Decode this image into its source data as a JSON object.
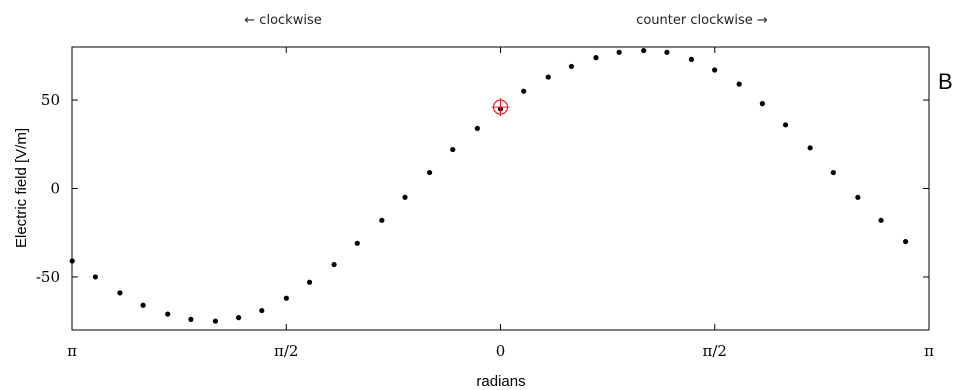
{
  "chart_data": {
    "type": "scatter",
    "panel_label": "B",
    "xlabel": "radians",
    "ylabel": "Electric field [V/m]",
    "direction_labels": {
      "left": "← clockwise",
      "right": "counter clockwise →"
    },
    "x_tick_labels": [
      "π",
      "π/2",
      "0",
      "π/2",
      "π"
    ],
    "x_tick_positions": [
      -3.14159,
      -1.5708,
      0,
      1.5708,
      3.14159
    ],
    "xlim": [
      -3.14159,
      3.14159
    ],
    "ylim": [
      -80,
      80
    ],
    "y_ticks": [
      -50,
      0,
      50
    ],
    "y_tick_labels": [
      "-50",
      "0",
      "50"
    ],
    "grid": false,
    "highlighted_point": {
      "x": 0,
      "y": 46,
      "color": "#e02020"
    },
    "series": [
      {
        "marker_color": "#000000",
        "points": [
          {
            "x": -3.14,
            "y": -41
          },
          {
            "x": -2.97,
            "y": -50
          },
          {
            "x": -2.79,
            "y": -59
          },
          {
            "x": -2.62,
            "y": -66
          },
          {
            "x": -2.44,
            "y": -71
          },
          {
            "x": -2.27,
            "y": -74
          },
          {
            "x": -2.09,
            "y": -75
          },
          {
            "x": -1.92,
            "y": -73
          },
          {
            "x": -1.75,
            "y": -69
          },
          {
            "x": -1.57,
            "y": -62
          },
          {
            "x": -1.4,
            "y": -53
          },
          {
            "x": -1.22,
            "y": -43
          },
          {
            "x": -1.05,
            "y": -31
          },
          {
            "x": -0.87,
            "y": -18
          },
          {
            "x": -0.7,
            "y": -5
          },
          {
            "x": -0.52,
            "y": 9
          },
          {
            "x": -0.35,
            "y": 22
          },
          {
            "x": -0.17,
            "y": 34
          },
          {
            "x": 0.0,
            "y": 45
          },
          {
            "x": 0.17,
            "y": 55
          },
          {
            "x": 0.35,
            "y": 63
          },
          {
            "x": 0.52,
            "y": 69
          },
          {
            "x": 0.7,
            "y": 74
          },
          {
            "x": 0.87,
            "y": 77
          },
          {
            "x": 1.05,
            "y": 78
          },
          {
            "x": 1.22,
            "y": 77
          },
          {
            "x": 1.4,
            "y": 73
          },
          {
            "x": 1.57,
            "y": 67
          },
          {
            "x": 1.75,
            "y": 59
          },
          {
            "x": 1.92,
            "y": 48
          },
          {
            "x": 2.09,
            "y": 36
          },
          {
            "x": 2.27,
            "y": 23
          },
          {
            "x": 2.44,
            "y": 9
          },
          {
            "x": 2.62,
            "y": -5
          },
          {
            "x": 2.79,
            "y": -18
          },
          {
            "x": 2.97,
            "y": -30
          }
        ]
      }
    ]
  }
}
